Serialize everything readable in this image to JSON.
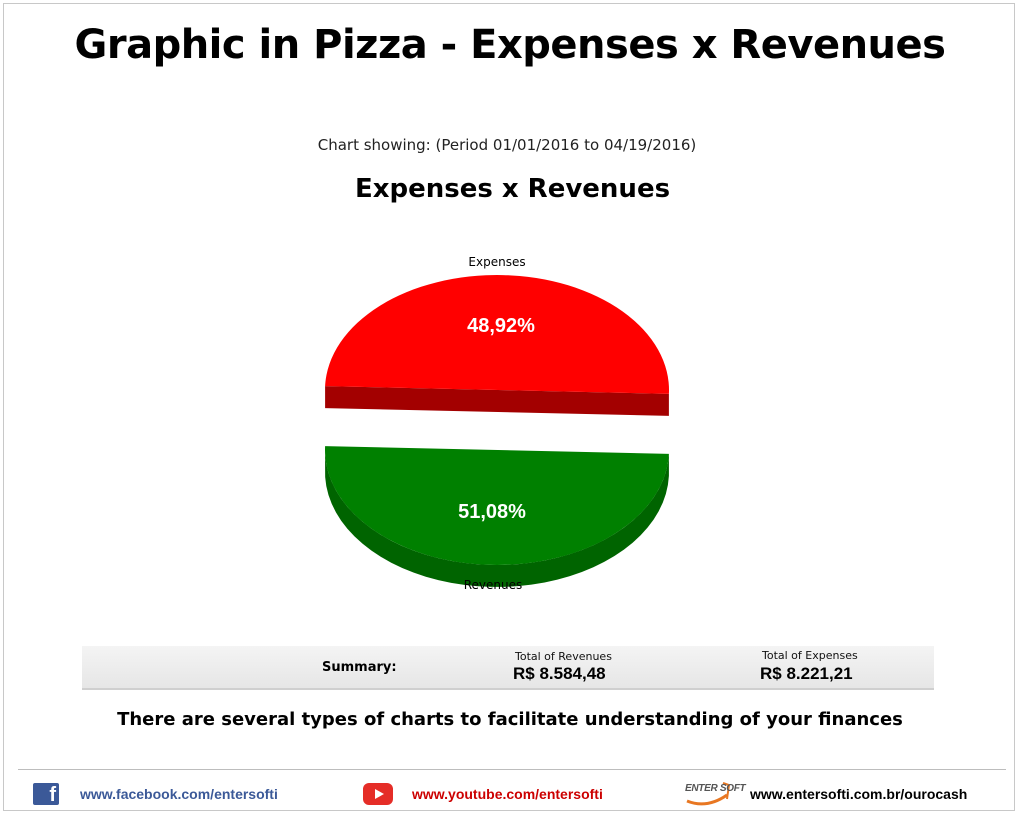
{
  "page": {
    "title": "Graphic in Pizza - Expenses x Revenues",
    "period_text": "Chart showing: (Period 01/01/2016 to 04/19/2016)",
    "footnote": "There are several types of charts to facilitate understanding of your finances"
  },
  "chart_data": {
    "type": "pie",
    "title": "Expenses x Revenues",
    "categories": [
      "Expenses",
      "Revenues"
    ],
    "values": [
      48.92,
      51.08
    ],
    "data_labels": [
      "48,92%",
      "51,08%"
    ],
    "colors": [
      "#ff0000",
      "#008000"
    ],
    "side_colors": [
      "#a30000",
      "#006400"
    ],
    "exploded": true,
    "three_d": true
  },
  "summary": {
    "label": "Summary:",
    "revenues_caption": "Total of Revenues",
    "revenues_value": "R$ 8.584,48",
    "expenses_caption": "Total of Expenses",
    "expenses_value": "R$ 8.221,21"
  },
  "footer": {
    "facebook_icon": "facebook-icon",
    "facebook": "www.facebook.com/entersofti",
    "facebook_color": "#3b5998",
    "youtube_icon": "youtube-icon",
    "youtube": "www.youtube.com/entersofti",
    "youtube_color": "#cc0000",
    "logo_text": "ENTER SOFT",
    "website": "www.entersofti.com.br/ourocash"
  }
}
